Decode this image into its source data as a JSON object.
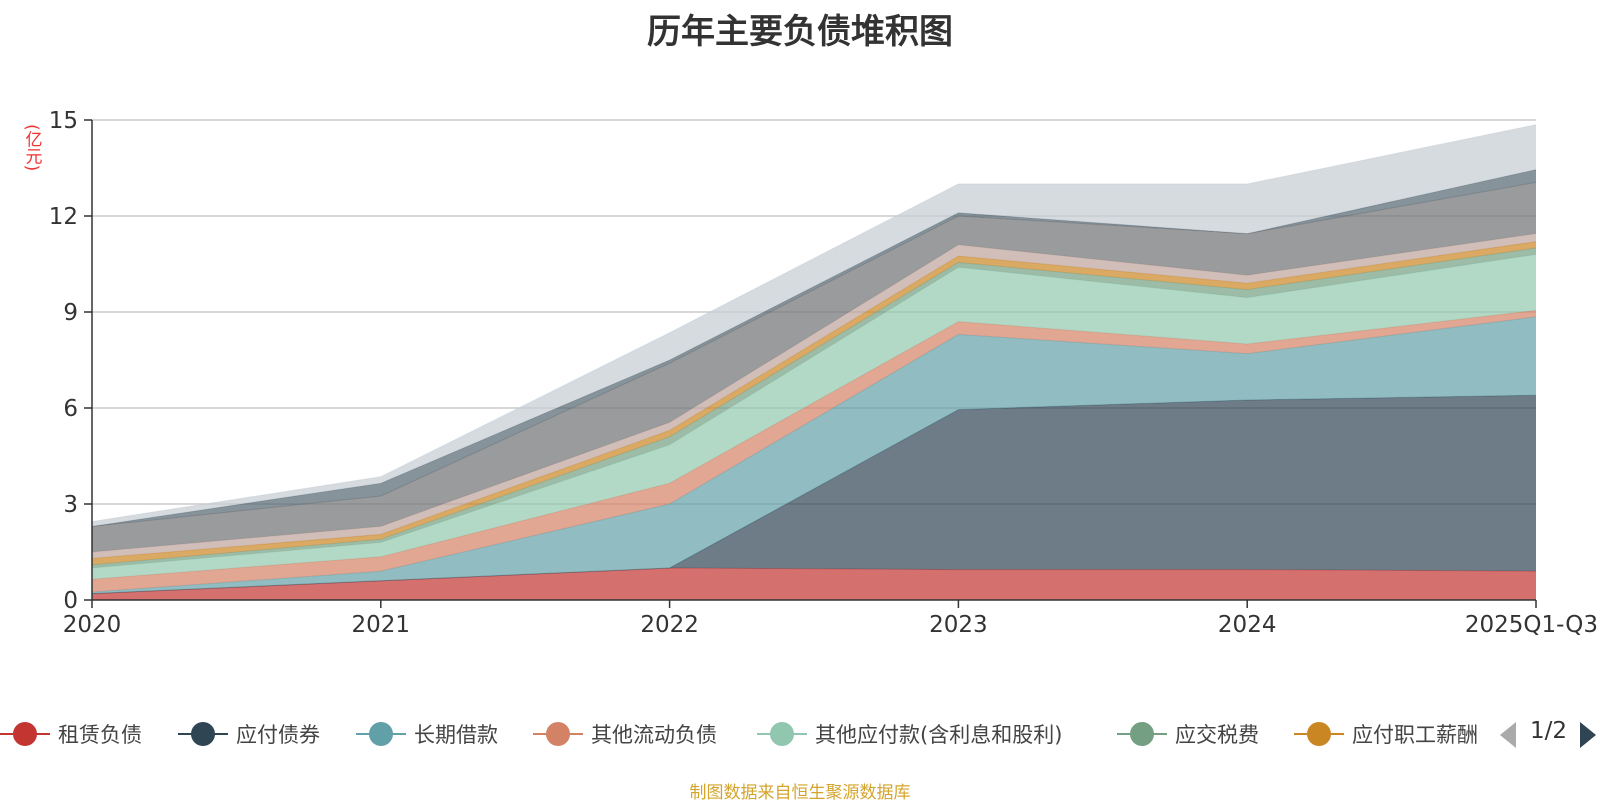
{
  "chart_data": {
    "type": "area",
    "title": "历年主要负债堆积图",
    "ylabel": "(亿元)",
    "xlabel": "",
    "stacked": true,
    "ylim": [
      0,
      15
    ],
    "yticks": [
      0,
      3,
      6,
      9,
      12,
      15
    ],
    "categories": [
      "2020",
      "2021",
      "2022",
      "2023",
      "2024",
      "2025Q1-Q3"
    ],
    "series": [
      {
        "name": "租赁负债",
        "color": "#c23531",
        "values": [
          0.2,
          0.6,
          1.0,
          0.95,
          0.95,
          0.9
        ],
        "in_legend": true
      },
      {
        "name": "应付债券",
        "color": "#2f4554",
        "values": [
          0.0,
          0.0,
          0.0,
          5.0,
          5.3,
          5.5
        ],
        "in_legend": true
      },
      {
        "name": "长期借款",
        "color": "#61a0a8",
        "values": [
          0.05,
          0.3,
          2.0,
          2.35,
          1.45,
          2.45
        ],
        "in_legend": true
      },
      {
        "name": "其他流动负债",
        "color": "#d48265",
        "values": [
          0.4,
          0.45,
          0.65,
          0.4,
          0.3,
          0.2
        ],
        "in_legend": true
      },
      {
        "name": "其他应付款(含利息和股利)",
        "color": "#91c7ae",
        "values": [
          0.35,
          0.45,
          1.2,
          1.7,
          1.45,
          1.75
        ],
        "in_legend": true
      },
      {
        "name": "应交税费",
        "color": "#749f83",
        "values": [
          0.1,
          0.1,
          0.25,
          0.15,
          0.25,
          0.2
        ],
        "in_legend": true
      },
      {
        "name": "应付职工薪酬",
        "color": "#ca8622",
        "values": [
          0.2,
          0.15,
          0.2,
          0.2,
          0.2,
          0.2
        ],
        "in_legend": true
      },
      {
        "name": "",
        "color": "#bda29a",
        "values": [
          0.2,
          0.25,
          0.25,
          0.35,
          0.25,
          0.25
        ],
        "in_legend": false
      },
      {
        "name": "",
        "color": "#6e7074",
        "values": [
          0.8,
          0.95,
          1.85,
          0.9,
          1.3,
          1.6
        ],
        "in_legend": false
      },
      {
        "name": "",
        "color": "#546570",
        "values": [
          0.0,
          0.4,
          0.1,
          0.1,
          0.0,
          0.4
        ],
        "in_legend": false
      },
      {
        "name": "",
        "color": "#c4ccd3",
        "values": [
          0.15,
          0.2,
          0.85,
          0.9,
          1.55,
          1.4
        ],
        "in_legend": false
      }
    ]
  },
  "legend": {
    "page_indicator": "1/2"
  },
  "source_note": "制图数据来自恒生聚源数据库"
}
